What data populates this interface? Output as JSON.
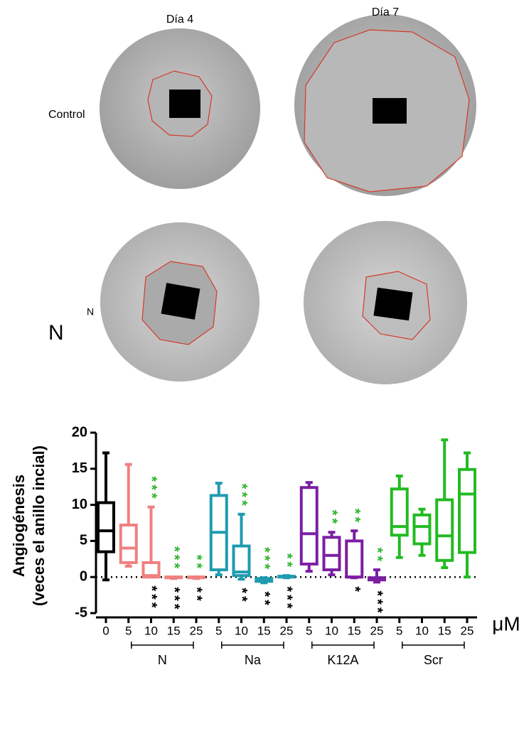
{
  "images": {
    "column_labels": [
      "Día 4",
      "Día 7"
    ],
    "row_labels": [
      "Control",
      "N"
    ],
    "side_label": "N"
  },
  "chart_data": {
    "type": "box",
    "ylabel": [
      "Angiogénesis",
      "(veces el anillo incial)"
    ],
    "ylim": [
      -5,
      20
    ],
    "yticks": [
      -5,
      0,
      5,
      10,
      15,
      20
    ],
    "reference_line": 0,
    "unit": "μM",
    "series": [
      {
        "color": "#000000",
        "categories": [
          "0"
        ],
        "boxes": [
          {
            "min": -0.4,
            "q1": 3.5,
            "median": 6.4,
            "q3": 10.3,
            "max": 17.2
          }
        ]
      },
      {
        "name": "N",
        "color": "#f08080",
        "categories": [
          "5",
          "10",
          "15",
          "25"
        ],
        "boxes": [
          {
            "min": 1.5,
            "q1": 2.0,
            "median": 4.0,
            "q3": 7.2,
            "max": 15.6
          },
          {
            "min": 0,
            "q1": 0,
            "median": 0.2,
            "q3": 2.0,
            "max": 9.7,
            "sig_top": "***",
            "sig_bottom": "***"
          },
          {
            "min": -0.2,
            "q1": -0.1,
            "median": 0,
            "q3": 0,
            "max": 0,
            "sig_top": "***",
            "sig_bottom": "***"
          },
          {
            "min": -0.2,
            "q1": -0.1,
            "median": 0,
            "q3": 0,
            "max": 0,
            "sig_top": "**",
            "sig_bottom": "**"
          }
        ]
      },
      {
        "name": "Na",
        "color": "#1f9bb0",
        "categories": [
          "5",
          "10",
          "15",
          "25"
        ],
        "boxes": [
          {
            "min": 0.3,
            "q1": 1.0,
            "median": 6.2,
            "q3": 11.3,
            "max": 13.0
          },
          {
            "min": -0.3,
            "q1": 0.2,
            "median": 0.7,
            "q3": 4.3,
            "max": 8.7,
            "sig_top": "***",
            "sig_bottom": "**"
          },
          {
            "min": -0.8,
            "q1": -0.6,
            "median": -0.3,
            "q3": -0.2,
            "max": -0.1,
            "sig_top": "***",
            "sig_bottom": "**"
          },
          {
            "min": -0.1,
            "q1": 0,
            "median": 0.1,
            "q3": 0.1,
            "max": 0.2,
            "sig_top": "**",
            "sig_bottom": "***"
          }
        ]
      },
      {
        "name": "K12A",
        "color": "#7b1fa2",
        "categories": [
          "5",
          "10",
          "15",
          "25"
        ],
        "boxes": [
          {
            "min": 0.8,
            "q1": 1.8,
            "median": 6.0,
            "q3": 12.4,
            "max": 13.1
          },
          {
            "min": 0.3,
            "q1": 1.0,
            "median": 3.0,
            "q3": 5.5,
            "max": 6.2,
            "sig_top": "**"
          },
          {
            "min": -0.1,
            "q1": 0,
            "median": 0,
            "q3": 5.0,
            "max": 6.4,
            "sig_top": "**",
            "sig_bottom": "*"
          },
          {
            "min": -0.7,
            "q1": -0.4,
            "median": -0.2,
            "q3": -0.1,
            "max": 1.0,
            "sig_top": "**",
            "sig_bottom": "***"
          }
        ]
      },
      {
        "name": "Scr",
        "color": "#22bb22",
        "categories": [
          "5",
          "10",
          "15",
          "25"
        ],
        "boxes": [
          {
            "min": 2.7,
            "q1": 5.8,
            "median": 7.0,
            "q3": 12.2,
            "max": 14.0
          },
          {
            "min": 3.0,
            "q1": 4.6,
            "median": 7.0,
            "q3": 8.6,
            "max": 9.4
          },
          {
            "min": 1.3,
            "q1": 2.3,
            "median": 5.7,
            "q3": 10.7,
            "max": 19.0
          },
          {
            "min": 0,
            "q1": 3.4,
            "median": 11.5,
            "q3": 14.9,
            "max": 17.2
          }
        ]
      }
    ]
  }
}
